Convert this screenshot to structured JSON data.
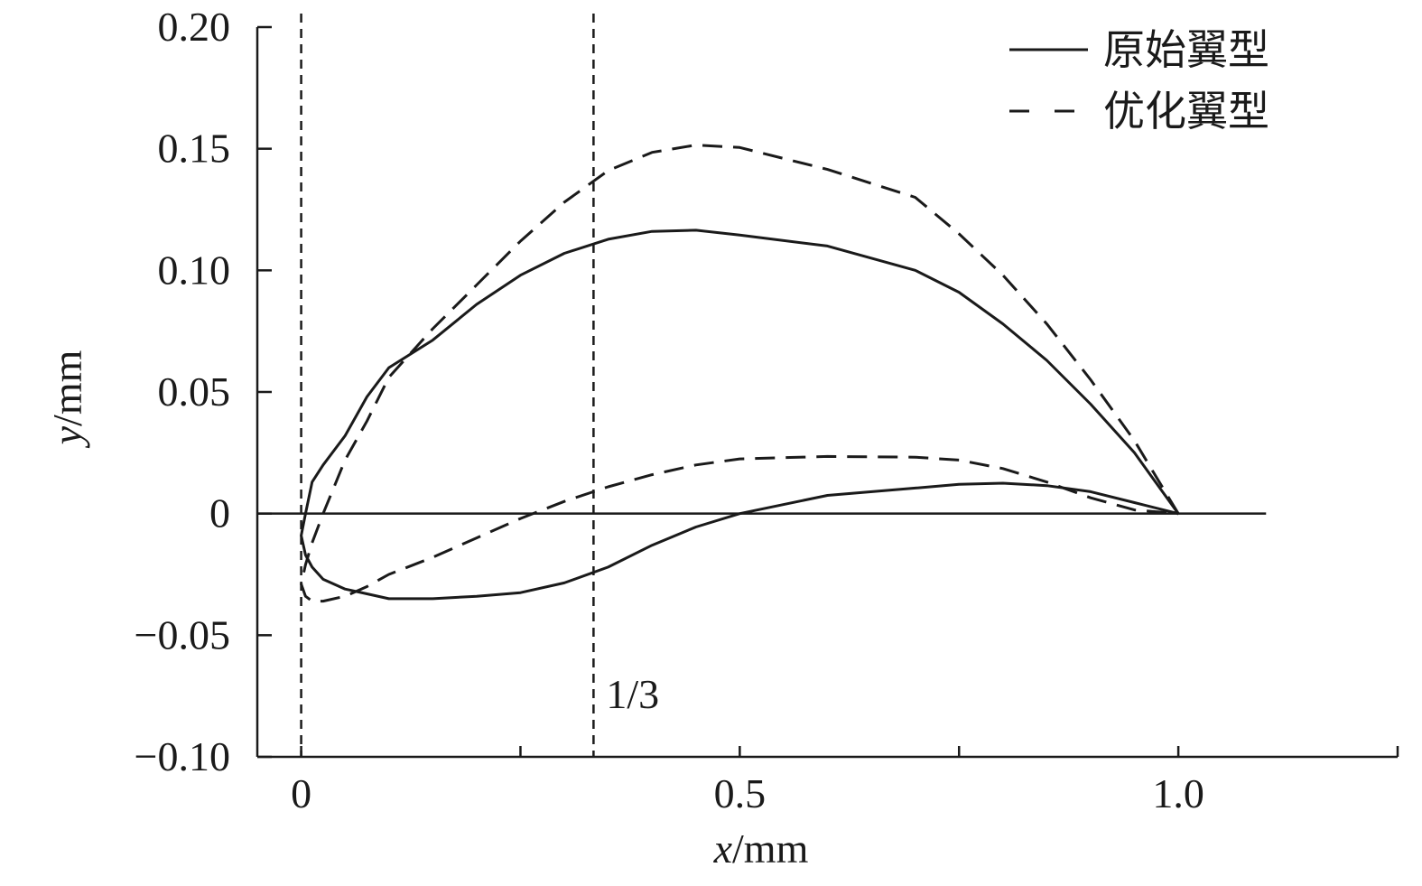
{
  "chart_data": {
    "type": "line",
    "title": "",
    "xlabel": {
      "var": "x",
      "unit": "/mm"
    },
    "ylabel": {
      "var": "y",
      "unit": "/mm"
    },
    "xlim": [
      -0.05,
      1.25
    ],
    "ylim": [
      -0.1,
      0.2
    ],
    "x_ticks": [
      0,
      0.25,
      0.5,
      0.75,
      1.0,
      1.25
    ],
    "x_tick_labels": [
      {
        "value": 0,
        "label": "0"
      },
      {
        "value": 0.5,
        "label": "0.5"
      },
      {
        "value": 1.0,
        "label": "1.0"
      }
    ],
    "y_ticks": [
      {
        "value": 0.2,
        "label": "0.20"
      },
      {
        "value": 0.15,
        "label": "0.15"
      },
      {
        "value": 0.1,
        "label": "0.10"
      },
      {
        "value": 0.05,
        "label": "0.05"
      },
      {
        "value": 0,
        "label": "0"
      },
      {
        "value": -0.05,
        "label": "−0.05"
      },
      {
        "value": -0.1,
        "label": "−0.10"
      }
    ],
    "grid": false,
    "legend_position": "top-right",
    "reference_lines": [
      {
        "axis": "y",
        "value": 0,
        "style": "solid"
      },
      {
        "axis": "x",
        "value": 0,
        "style": "dashed"
      },
      {
        "axis": "x",
        "value": 0.3333,
        "style": "dashed",
        "label": "1/3"
      }
    ],
    "series": [
      {
        "name": "原始翼型",
        "style": "solid",
        "color": "#1a1a1a",
        "x": [
          1.0,
          0.95,
          0.9,
          0.85,
          0.8,
          0.75,
          0.7,
          0.6,
          0.5,
          0.45,
          0.4,
          0.35,
          0.3,
          0.25,
          0.2,
          0.15,
          0.1,
          0.075,
          0.05,
          0.025,
          0.0125,
          0.005,
          0.0,
          0.005,
          0.0125,
          0.025,
          0.05,
          0.075,
          0.1,
          0.15,
          0.2,
          0.25,
          0.3,
          0.35,
          0.4,
          0.45,
          0.5,
          0.6,
          0.7,
          0.75,
          0.8,
          0.85,
          0.9,
          0.95,
          1.0
        ],
        "y": [
          0.0,
          0.025,
          0.045,
          0.063,
          0.078,
          0.091,
          0.1,
          0.11,
          0.1145,
          0.1165,
          0.116,
          0.1128,
          0.107,
          0.098,
          0.086,
          0.0713,
          0.06,
          0.048,
          0.032,
          0.02,
          0.013,
          0.0,
          -0.009,
          -0.017,
          -0.022,
          -0.027,
          -0.031,
          -0.033,
          -0.035,
          -0.035,
          -0.034,
          -0.0325,
          -0.0285,
          -0.022,
          -0.013,
          -0.0055,
          0.0,
          0.0075,
          0.0105,
          0.012,
          0.0125,
          0.0115,
          0.009,
          0.0045,
          0.0
        ]
      },
      {
        "name": "优化翼型",
        "style": "dashed",
        "color": "#1a1a1a",
        "x": [
          1.0,
          0.95,
          0.9,
          0.85,
          0.8,
          0.75,
          0.7,
          0.6,
          0.5,
          0.45,
          0.4,
          0.35,
          0.3,
          0.25,
          0.2,
          0.15,
          0.1,
          0.075,
          0.05,
          0.025,
          0.0125,
          0.005,
          0.0,
          0.005,
          0.0125,
          0.025,
          0.05,
          0.075,
          0.1,
          0.15,
          0.2,
          0.25,
          0.3,
          0.35,
          0.4,
          0.45,
          0.5,
          0.6,
          0.7,
          0.75,
          0.8,
          0.85,
          0.9,
          0.95,
          1.0
        ],
        "y": [
          0.0,
          0.03,
          0.055,
          0.078,
          0.098,
          0.115,
          0.13,
          0.1415,
          0.1505,
          0.1515,
          0.1485,
          0.141,
          0.128,
          0.112,
          0.094,
          0.076,
          0.056,
          0.038,
          0.022,
          0.0,
          -0.012,
          -0.021,
          -0.029,
          -0.034,
          -0.036,
          -0.036,
          -0.034,
          -0.03,
          -0.025,
          -0.018,
          -0.01,
          -0.002,
          0.005,
          0.011,
          0.016,
          0.02,
          0.0225,
          0.0235,
          0.0232,
          0.022,
          0.0185,
          0.013,
          0.0065,
          0.0015,
          0.0
        ]
      }
    ]
  }
}
